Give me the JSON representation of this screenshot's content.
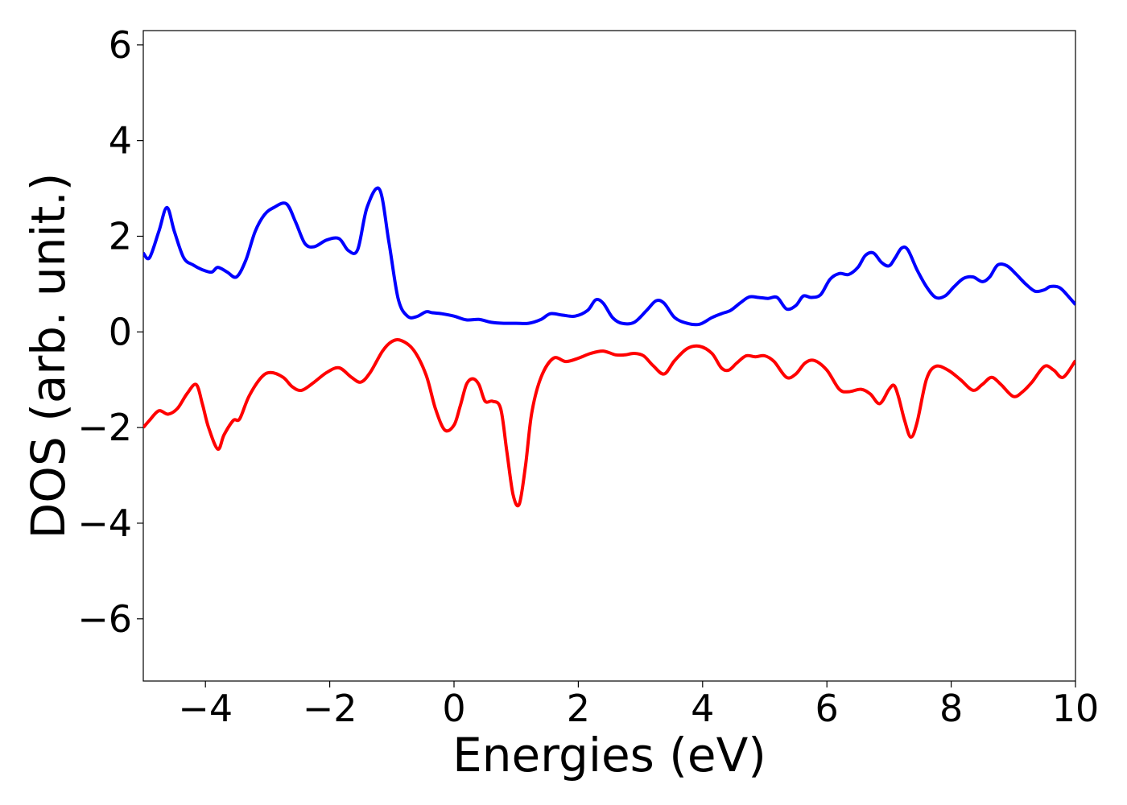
{
  "chart_data": {
    "type": "line",
    "title": "",
    "xlabel": "Energies (eV)",
    "ylabel": "DOS (arb. unit.)",
    "xlim": [
      -5,
      10
    ],
    "ylim": [
      -7.3,
      6.3
    ],
    "xticks": [
      -4,
      -2,
      0,
      2,
      4,
      6,
      8,
      10
    ],
    "yticks": [
      -6,
      -4,
      -2,
      0,
      2,
      4,
      6
    ],
    "xtick_labels": [
      "−4",
      "−2",
      "0",
      "2",
      "4",
      "6",
      "8",
      "10"
    ],
    "ytick_labels": [
      "−6",
      "−4",
      "−2",
      "0",
      "2",
      "4",
      "6"
    ],
    "grid": false,
    "series": [
      {
        "color": "#0000ff",
        "x": [
          -5.0,
          -4.9,
          -4.75,
          -4.62,
          -4.5,
          -4.35,
          -4.2,
          -4.05,
          -3.9,
          -3.8,
          -3.65,
          -3.5,
          -3.35,
          -3.2,
          -3.05,
          -2.9,
          -2.7,
          -2.55,
          -2.4,
          -2.25,
          -2.05,
          -1.85,
          -1.7,
          -1.55,
          -1.4,
          -1.2,
          -1.05,
          -0.9,
          -0.75,
          -0.6,
          -0.45,
          -0.35,
          -0.2,
          0.0,
          0.2,
          0.4,
          0.6,
          0.8,
          1.0,
          1.2,
          1.4,
          1.55,
          1.75,
          1.95,
          2.15,
          2.28,
          2.4,
          2.55,
          2.7,
          2.9,
          3.1,
          3.25,
          3.38,
          3.55,
          3.75,
          3.95,
          4.15,
          4.3,
          4.45,
          4.6,
          4.75,
          4.9,
          5.05,
          5.2,
          5.35,
          5.5,
          5.62,
          5.75,
          5.9,
          6.05,
          6.2,
          6.35,
          6.5,
          6.62,
          6.75,
          6.88,
          7.0,
          7.1,
          7.2,
          7.3,
          7.45,
          7.6,
          7.75,
          7.9,
          8.05,
          8.2,
          8.35,
          8.5,
          8.62,
          8.75,
          8.9,
          9.05,
          9.2,
          9.35,
          9.5,
          9.6,
          9.75,
          9.9,
          10.0
        ],
        "values": [
          1.65,
          1.55,
          2.1,
          2.6,
          2.1,
          1.55,
          1.4,
          1.3,
          1.25,
          1.35,
          1.25,
          1.15,
          1.5,
          2.1,
          2.45,
          2.6,
          2.68,
          2.3,
          1.85,
          1.78,
          1.92,
          1.95,
          1.7,
          1.72,
          2.6,
          2.98,
          1.9,
          0.7,
          0.33,
          0.32,
          0.42,
          0.4,
          0.38,
          0.33,
          0.25,
          0.26,
          0.2,
          0.18,
          0.18,
          0.18,
          0.26,
          0.38,
          0.35,
          0.33,
          0.45,
          0.67,
          0.6,
          0.3,
          0.18,
          0.2,
          0.45,
          0.65,
          0.6,
          0.3,
          0.18,
          0.16,
          0.3,
          0.38,
          0.45,
          0.6,
          0.73,
          0.72,
          0.7,
          0.72,
          0.48,
          0.55,
          0.75,
          0.72,
          0.78,
          1.1,
          1.22,
          1.2,
          1.35,
          1.6,
          1.65,
          1.45,
          1.38,
          1.55,
          1.75,
          1.72,
          1.3,
          0.95,
          0.72,
          0.75,
          0.95,
          1.12,
          1.15,
          1.05,
          1.15,
          1.4,
          1.38,
          1.2,
          1.0,
          0.85,
          0.88,
          0.95,
          0.92,
          0.72,
          0.57
        ]
      },
      {
        "color": "#ff0000",
        "x": [
          -5.0,
          -4.9,
          -4.75,
          -4.6,
          -4.45,
          -4.3,
          -4.15,
          -4.05,
          -3.95,
          -3.8,
          -3.7,
          -3.55,
          -3.45,
          -3.3,
          -3.1,
          -2.95,
          -2.75,
          -2.6,
          -2.45,
          -2.25,
          -2.05,
          -1.85,
          -1.65,
          -1.5,
          -1.35,
          -1.15,
          -1.0,
          -0.85,
          -0.65,
          -0.45,
          -0.3,
          -0.15,
          0.0,
          0.1,
          0.2,
          0.3,
          0.4,
          0.5,
          0.62,
          0.75,
          0.85,
          0.95,
          1.05,
          1.15,
          1.25,
          1.4,
          1.6,
          1.8,
          2.0,
          2.2,
          2.4,
          2.6,
          2.75,
          2.9,
          3.05,
          3.2,
          3.38,
          3.55,
          3.75,
          3.95,
          4.15,
          4.3,
          4.42,
          4.55,
          4.7,
          4.85,
          5.0,
          5.15,
          5.35,
          5.5,
          5.65,
          5.8,
          6.0,
          6.2,
          6.35,
          6.55,
          6.7,
          6.85,
          7.0,
          7.08,
          7.15,
          7.25,
          7.35,
          7.45,
          7.6,
          7.75,
          7.95,
          8.15,
          8.35,
          8.5,
          8.65,
          8.8,
          9.0,
          9.15,
          9.3,
          9.5,
          9.65,
          9.8,
          10.0
        ],
        "values": [
          -2.0,
          -1.85,
          -1.65,
          -1.72,
          -1.6,
          -1.3,
          -1.1,
          -1.5,
          -2.0,
          -2.45,
          -2.15,
          -1.85,
          -1.82,
          -1.35,
          -0.95,
          -0.85,
          -0.95,
          -1.15,
          -1.22,
          -1.05,
          -0.85,
          -0.75,
          -0.95,
          -1.05,
          -0.85,
          -0.4,
          -0.2,
          -0.18,
          -0.38,
          -0.9,
          -1.6,
          -2.05,
          -1.95,
          -1.55,
          -1.1,
          -0.98,
          -1.1,
          -1.45,
          -1.45,
          -1.6,
          -2.5,
          -3.4,
          -3.6,
          -2.8,
          -1.7,
          -0.95,
          -0.55,
          -0.62,
          -0.55,
          -0.45,
          -0.4,
          -0.48,
          -0.48,
          -0.45,
          -0.5,
          -0.7,
          -0.88,
          -0.6,
          -0.35,
          -0.3,
          -0.45,
          -0.75,
          -0.8,
          -0.65,
          -0.5,
          -0.52,
          -0.5,
          -0.62,
          -0.95,
          -0.88,
          -0.65,
          -0.6,
          -0.8,
          -1.2,
          -1.25,
          -1.2,
          -1.3,
          -1.5,
          -1.2,
          -1.12,
          -1.35,
          -1.85,
          -2.2,
          -1.9,
          -1.0,
          -0.72,
          -0.8,
          -1.0,
          -1.22,
          -1.1,
          -0.95,
          -1.1,
          -1.35,
          -1.25,
          -1.05,
          -0.72,
          -0.8,
          -0.95,
          -0.6
        ]
      }
    ]
  }
}
